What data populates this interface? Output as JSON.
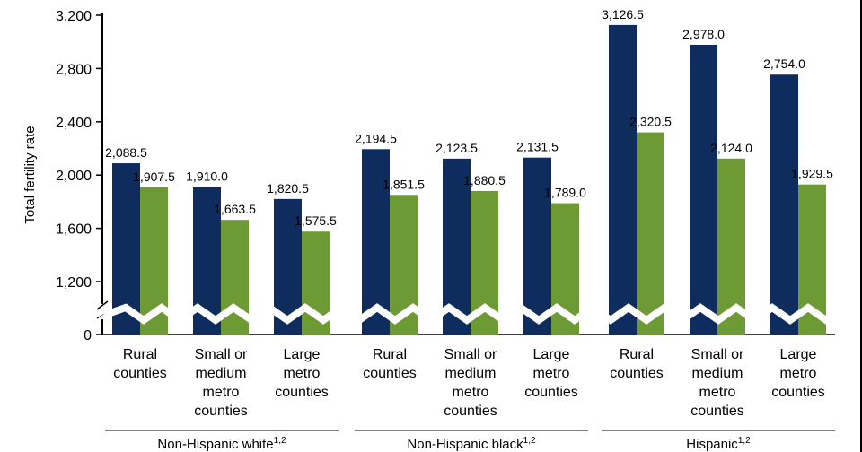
{
  "chart_data": {
    "type": "bar",
    "ylabel": "Total fertility rate",
    "ylim": [
      0,
      3200
    ],
    "axis_break": true,
    "y_ticks": [
      "0",
      "1,200",
      "1,600",
      "2,000",
      "2,400",
      "2,800",
      "3,200"
    ],
    "y_tick_values": [
      0,
      1200,
      1600,
      2000,
      2400,
      2800,
      3200
    ],
    "colors": {
      "dark": "#0e2d5e",
      "green": "#6d9a34"
    },
    "groups": [
      {
        "label": "Non-Hispanic white",
        "sup": "1,2",
        "categories": [
          {
            "label": [
              "Rural",
              "counties"
            ],
            "values": [
              2088.5,
              1907.5
            ],
            "labels": [
              "2,088.5",
              "1,907.5"
            ]
          },
          {
            "label": [
              "Small or",
              "medium",
              "metro",
              "counties"
            ],
            "values": [
              1910.0,
              1663.5
            ],
            "labels": [
              "1,910.0",
              "1,663.5"
            ]
          },
          {
            "label": [
              "Large",
              "metro",
              "counties"
            ],
            "values": [
              1820.5,
              1575.5
            ],
            "labels": [
              "1,820.5",
              "1,575.5"
            ]
          }
        ]
      },
      {
        "label": "Non-Hispanic black",
        "sup": "1,2",
        "categories": [
          {
            "label": [
              "Rural",
              "counties"
            ],
            "values": [
              2194.5,
              1851.5
            ],
            "labels": [
              "2,194.5",
              "1,851.5"
            ]
          },
          {
            "label": [
              "Small or",
              "medium",
              "metro",
              "counties"
            ],
            "values": [
              2123.5,
              1880.5
            ],
            "labels": [
              "2,123.5",
              "1,880.5"
            ]
          },
          {
            "label": [
              "Large",
              "metro",
              "counties"
            ],
            "values": [
              2131.5,
              1789.0
            ],
            "labels": [
              "2,131.5",
              "1,789.0"
            ]
          }
        ]
      },
      {
        "label": "Hispanic",
        "sup": "1,2",
        "categories": [
          {
            "label": [
              "Rural",
              "counties"
            ],
            "values": [
              3126.5,
              2320.5
            ],
            "labels": [
              "3,126.5",
              "2,320.5"
            ]
          },
          {
            "label": [
              "Small or",
              "medium",
              "metro",
              "counties"
            ],
            "values": [
              2978.0,
              2124.0
            ],
            "labels": [
              "2,978.0",
              "2,124.0"
            ]
          },
          {
            "label": [
              "Large",
              "metro",
              "counties"
            ],
            "values": [
              2754.0,
              1929.5
            ],
            "labels": [
              "2,754.0",
              "1,929.5"
            ]
          }
        ]
      }
    ]
  }
}
